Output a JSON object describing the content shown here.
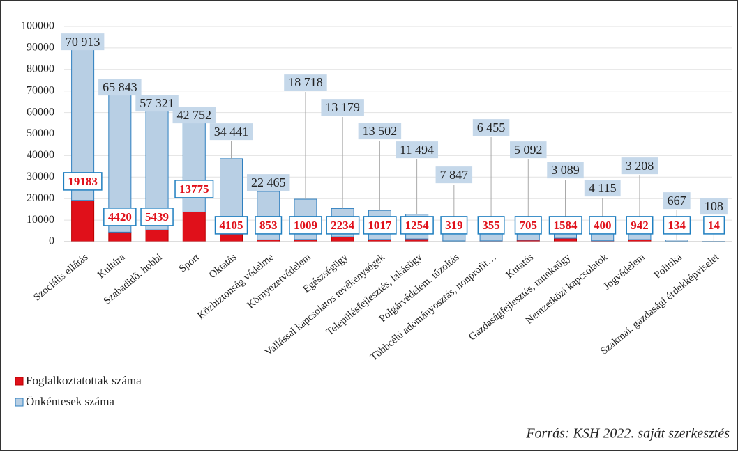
{
  "chart_data": {
    "type": "stacked_bar",
    "categories": [
      "Szociális ellátás",
      "Kultúra",
      "Szabadidő, hobbi",
      "Sport",
      "Oktatás",
      "Közbiztonság védelme",
      "Környezetvédelem",
      "Egészségügy",
      "Vallással kapcsolatos tevékenységek",
      "Településfejlesztés, lakásügy",
      "Polgárvédelem, tűzoltás",
      "Többcélú adományosztás, nonprofit…",
      "Kutatás",
      "Gazdaságfejlesztés, munkaügy",
      "Nemzetközi kapcsolatok",
      "Jogvédelem",
      "Politika",
      "Szakmai, gazdasági érdekképviselet"
    ],
    "series": [
      {
        "name": "Foglalkoztatottak száma",
        "color": "#e0101a",
        "values": [
          19183,
          4420,
          5439,
          13775,
          4105,
          853,
          1009,
          2234,
          1017,
          1254,
          319,
          355,
          705,
          1584,
          400,
          942,
          134,
          14
        ]
      },
      {
        "name": "Önkéntesek száma",
        "color": "#b8cfe4",
        "values": [
          70913,
          65843,
          57321,
          42752,
          34441,
          22465,
          18718,
          13179,
          13502,
          11494,
          7847,
          6455,
          5092,
          3089,
          4115,
          3208,
          667,
          108
        ],
        "value_labels": [
          "70 913",
          "65 843",
          "57 321",
          "42 752",
          "34 441",
          "22 465",
          "18 718",
          "13 179",
          "13 502",
          "11 494",
          "7 847",
          "6 455",
          "5 092",
          "3 089",
          "4 115",
          "3 208",
          "667",
          "108"
        ]
      }
    ],
    "ylim": [
      0,
      100000
    ],
    "yticks": [
      0,
      10000,
      20000,
      30000,
      40000,
      50000,
      60000,
      70000,
      80000,
      90000,
      100000
    ],
    "grid": true,
    "source": "Forrás: KSH 2022. saját szerkesztés"
  }
}
